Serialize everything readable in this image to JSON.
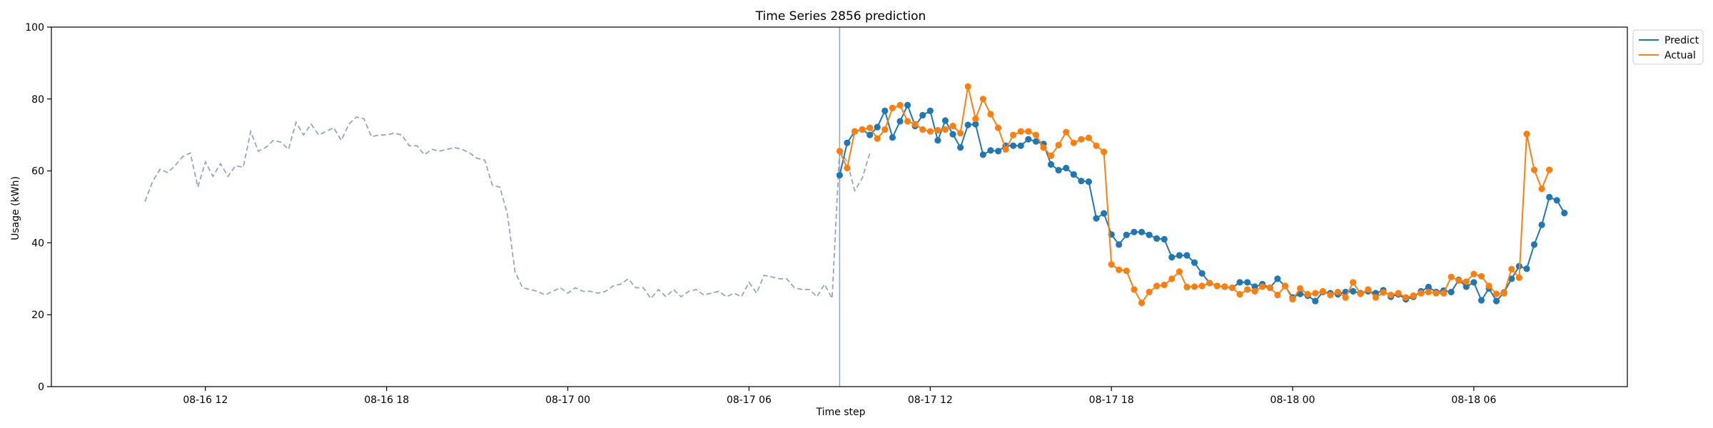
{
  "chart_data": {
    "type": "line",
    "title": "Time Series 2856 prediction",
    "xlabel": "Time step",
    "ylabel": "Usage (kWh)",
    "ylim": [
      0,
      100
    ],
    "xlim": [
      "2024-08-16 06:54",
      "2024-08-18 11:05"
    ],
    "yticks": [
      0,
      20,
      40,
      60,
      80,
      100
    ],
    "xticks": [
      {
        "at": "2024-08-16 12:00",
        "label": "08-16 12"
      },
      {
        "at": "2024-08-16 18:00",
        "label": "08-16 18"
      },
      {
        "at": "2024-08-17 00:00",
        "label": "08-17 00"
      },
      {
        "at": "2024-08-17 06:00",
        "label": "08-17 06"
      },
      {
        "at": "2024-08-17 12:00",
        "label": "08-17 12"
      },
      {
        "at": "2024-08-17 18:00",
        "label": "08-17 18"
      },
      {
        "at": "2024-08-18 00:00",
        "label": "08-18 00"
      },
      {
        "at": "2024-08-18 06:00",
        "label": "08-18 06"
      }
    ],
    "grid": false,
    "legend_position": "top-right",
    "forecast_start": "2024-08-17 09:00",
    "history": {
      "start": "2024-08-16 10:00",
      "step_minutes": 15,
      "color": "#8fa6c9",
      "style": "dashed",
      "values": [
        51.5,
        57,
        60.5,
        59.5,
        61.5,
        64,
        65,
        55.5,
        62.5,
        58.5,
        62,
        58.5,
        61.5,
        61,
        71,
        65.5,
        66.5,
        68.5,
        68,
        66,
        73.5,
        70,
        73,
        70,
        71,
        72,
        68.5,
        73,
        75,
        74.5,
        69.5,
        70,
        70,
        70.5,
        70,
        67,
        67,
        64.5,
        66,
        65.5,
        66,
        66.5,
        66,
        65,
        63.5,
        63,
        56,
        55.5,
        48,
        32,
        27.5,
        27,
        26.5,
        25.5,
        26.5,
        27.5,
        26,
        27.5,
        26.5,
        26.5,
        26,
        26.5,
        28,
        28.5,
        30,
        27.5,
        27.5,
        24.5,
        27,
        25,
        27,
        25,
        26.5,
        27,
        25.5,
        26,
        26.5,
        25,
        26,
        25,
        29,
        26,
        31,
        30.5,
        30,
        30,
        27.5,
        27,
        27,
        25,
        28.5,
        24.5,
        66,
        62.5,
        54.5,
        58,
        65
      ]
    },
    "series": [
      {
        "name": "Predict",
        "color": "#1f77b4",
        "start": "2024-08-17 09:00",
        "step_minutes": 15,
        "values": [
          58.8,
          67.8,
          71,
          71.5,
          70,
          72.2,
          76.7,
          69.3,
          73.8,
          78.3,
          72.5,
          75.5,
          76.7,
          68.5,
          74,
          70.2,
          66.5,
          72.8,
          73,
          64.5,
          65.7,
          65.5,
          67,
          67,
          67,
          68.8,
          68.2,
          67.5,
          61.8,
          60.2,
          60.8,
          59,
          57.2,
          57,
          46.8,
          48.2,
          42.3,
          39.5,
          42.2,
          43,
          43,
          42.2,
          41.2,
          41,
          36,
          36.5,
          36.5,
          34.5,
          31.5,
          28.8,
          28,
          27.8,
          27.5,
          29,
          29,
          27.8,
          28.5,
          27.5,
          30,
          28,
          24.8,
          25.8,
          25.3,
          23.8,
          26.3,
          26,
          25.7,
          26.3,
          26.5,
          26,
          26.5,
          26,
          26.8,
          25,
          25.7,
          24.3,
          25,
          26.5,
          27.7,
          26.3,
          26.7,
          26.3,
          29.7,
          27.8,
          29,
          24,
          27.3,
          23.8,
          26.2,
          30,
          33.5,
          32.8,
          39.5,
          45,
          52.7,
          51.8,
          48.3
        ]
      },
      {
        "name": "Actual",
        "color": "#ff7f0e",
        "start": "2024-08-17 09:00",
        "step_minutes": 15,
        "values": [
          65.5,
          60.8,
          71,
          71.5,
          72,
          69,
          71.5,
          77.5,
          78.3,
          73.8,
          73,
          71.5,
          71,
          71.3,
          71.5,
          72.5,
          70.5,
          83.5,
          74.5,
          80,
          75.8,
          72,
          66,
          70,
          71,
          71,
          70,
          66.5,
          64.2,
          67.2,
          70.8,
          67.8,
          68.8,
          69.2,
          67,
          65.3,
          34,
          32.5,
          32.2,
          27,
          23.3,
          26.3,
          28,
          28.3,
          30,
          32,
          27.7,
          27.8,
          28,
          28.8,
          28,
          27.8,
          27.5,
          25.7,
          27,
          26.5,
          27.8,
          27.5,
          25.5,
          28,
          24.3,
          27.3,
          25.7,
          26,
          26.5,
          25.5,
          26.3,
          24.8,
          29,
          25.8,
          27,
          24.8,
          26.2,
          25.5,
          26,
          24.8,
          25.3,
          26,
          26.3,
          26,
          26,
          30.5,
          29.5,
          29.2,
          31.3,
          30.7,
          28,
          25.8,
          26,
          32.7,
          30.3,
          70.3,
          60.3,
          55,
          60.3
        ]
      }
    ]
  }
}
